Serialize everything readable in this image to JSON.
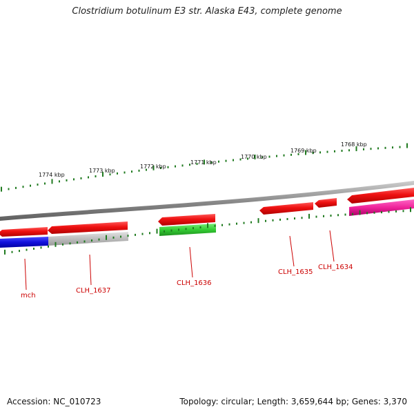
{
  "title": "Clostridium botulinum E3 str. Alaska E43, complete genome",
  "footer": {
    "accession": "Accession: NC_010723",
    "summary": "Topology: circular; Length: 3,659,644 bp; Genes: 3,370"
  },
  "colors": {
    "backbone": "#8c8c8c",
    "ticks": "#1f7a1f",
    "cds_forward": "#ee1111",
    "cds_reverse_gray": "#bdbdbd",
    "cds_reverse_blue": "#1111dd",
    "cds_reverse_green": "#33cc33",
    "cds_reverse_magenta": "#ee2299",
    "labels": "#cc0000"
  },
  "scale_labels": [
    "1774 kbp",
    "1773 kbp",
    "1772 kbp",
    "1771 kbp",
    "1770 kbp",
    "1769 kbp",
    "1768 kbp"
  ],
  "gene_labels": [
    "mch",
    "CLH_1637",
    "CLH_1636",
    "CLH_1635",
    "CLH_1634"
  ]
}
